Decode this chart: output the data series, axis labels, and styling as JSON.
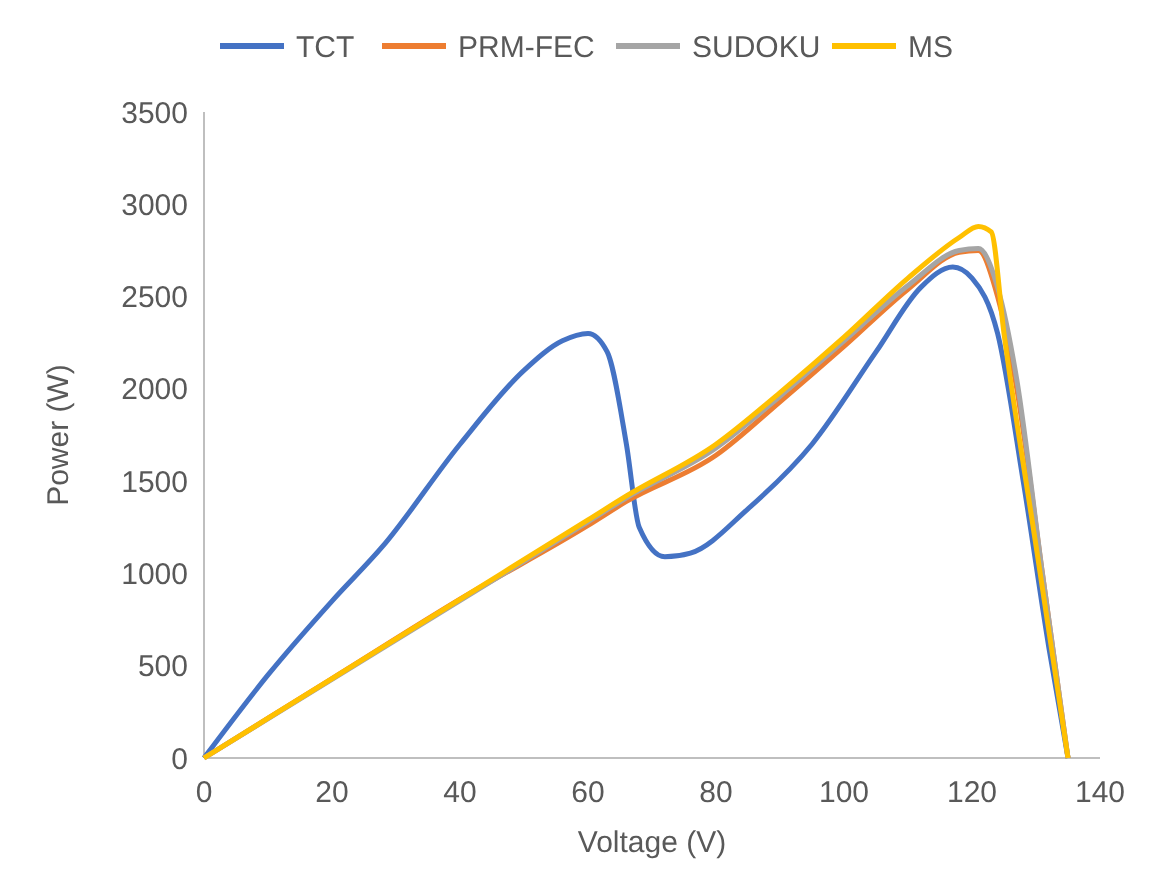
{
  "chart_data": {
    "type": "line",
    "xlabel": "Voltage (V)",
    "ylabel": "Power (W)",
    "xlim": [
      0,
      140
    ],
    "xticks": [
      0,
      20,
      40,
      60,
      80,
      100,
      120,
      140
    ],
    "ylim": [
      0,
      3500
    ],
    "yticks": [
      0,
      500,
      1000,
      1500,
      2000,
      2500,
      3000,
      3500
    ],
    "legend": "top",
    "grid": false,
    "marker": "none",
    "line_style": "solid",
    "series": [
      {
        "name": "TCT",
        "color": "#4472c4",
        "x": [
          0,
          10,
          20,
          28,
          40,
          50,
          56,
          60,
          63,
          66,
          68,
          72,
          76,
          85,
          95,
          105,
          112,
          117,
          120,
          124,
          128,
          132,
          135
        ],
        "values": [
          0,
          450,
          850,
          1150,
          1700,
          2100,
          2260,
          2300,
          2200,
          1700,
          1250,
          1090,
          1110,
          1350,
          1700,
          2200,
          2550,
          2660,
          2600,
          2300,
          1500,
          600,
          0
        ]
      },
      {
        "name": "PRM-FEC",
        "color": "#ed7d31",
        "x": [
          0,
          20,
          40,
          60,
          66,
          80,
          90,
          100,
          110,
          118,
          121,
          124,
          127,
          131,
          135
        ],
        "values": [
          0,
          430,
          860,
          1260,
          1390,
          1640,
          1930,
          2230,
          2540,
          2740,
          2750,
          2500,
          2000,
          1000,
          0
        ]
      },
      {
        "name": "SUDOKU",
        "color": "#a5a5a5",
        "x": [
          0,
          20,
          40,
          60,
          66,
          80,
          90,
          100,
          110,
          118,
          121,
          124,
          127,
          131,
          135
        ],
        "values": [
          0,
          null,
          null,
          1280,
          1410,
          1680,
          1960,
          2260,
          2560,
          2750,
          2760,
          2550,
          2050,
          1000,
          0
        ]
      },
      {
        "name": "MS",
        "color": "#ffc000",
        "x": [
          0,
          20,
          40,
          60,
          66,
          80,
          90,
          100,
          110,
          118,
          121,
          123,
          125,
          130,
          135
        ],
        "values": [
          0,
          430,
          860,
          1290,
          1420,
          1700,
          1980,
          2280,
          2600,
          2820,
          2880,
          2850,
          2300,
          1150,
          0
        ]
      }
    ]
  }
}
